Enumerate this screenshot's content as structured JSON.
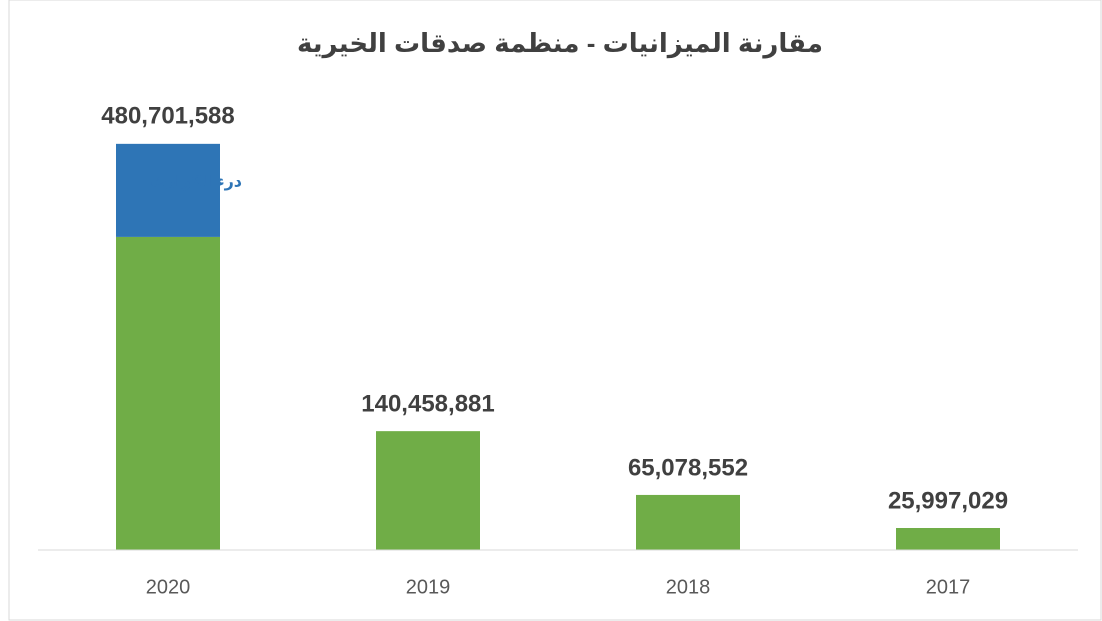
{
  "chart_data": {
    "type": "stacked_bar",
    "title": "مقارنة الميزانيات - منظمة صدقات الخيرية",
    "categories": [
      "2020",
      "2019",
      "2018",
      "2017"
    ],
    "series": [
      {
        "name": null,
        "color": "#70ad47",
        "values": [
          370000000,
          140458881,
          65078552,
          25997029
        ]
      },
      {
        "name": "درء الكوارث",
        "color": "#2e75b6",
        "values": [
          110000000,
          null,
          null,
          null
        ]
      }
    ],
    "totals": [
      480701588,
      140458881,
      65078552,
      25997029
    ],
    "total_labels": [
      "480,701,588",
      "140,458,881",
      "65,078,552",
      "25,997,029"
    ],
    "ylim": [
      0,
      520000000
    ]
  }
}
